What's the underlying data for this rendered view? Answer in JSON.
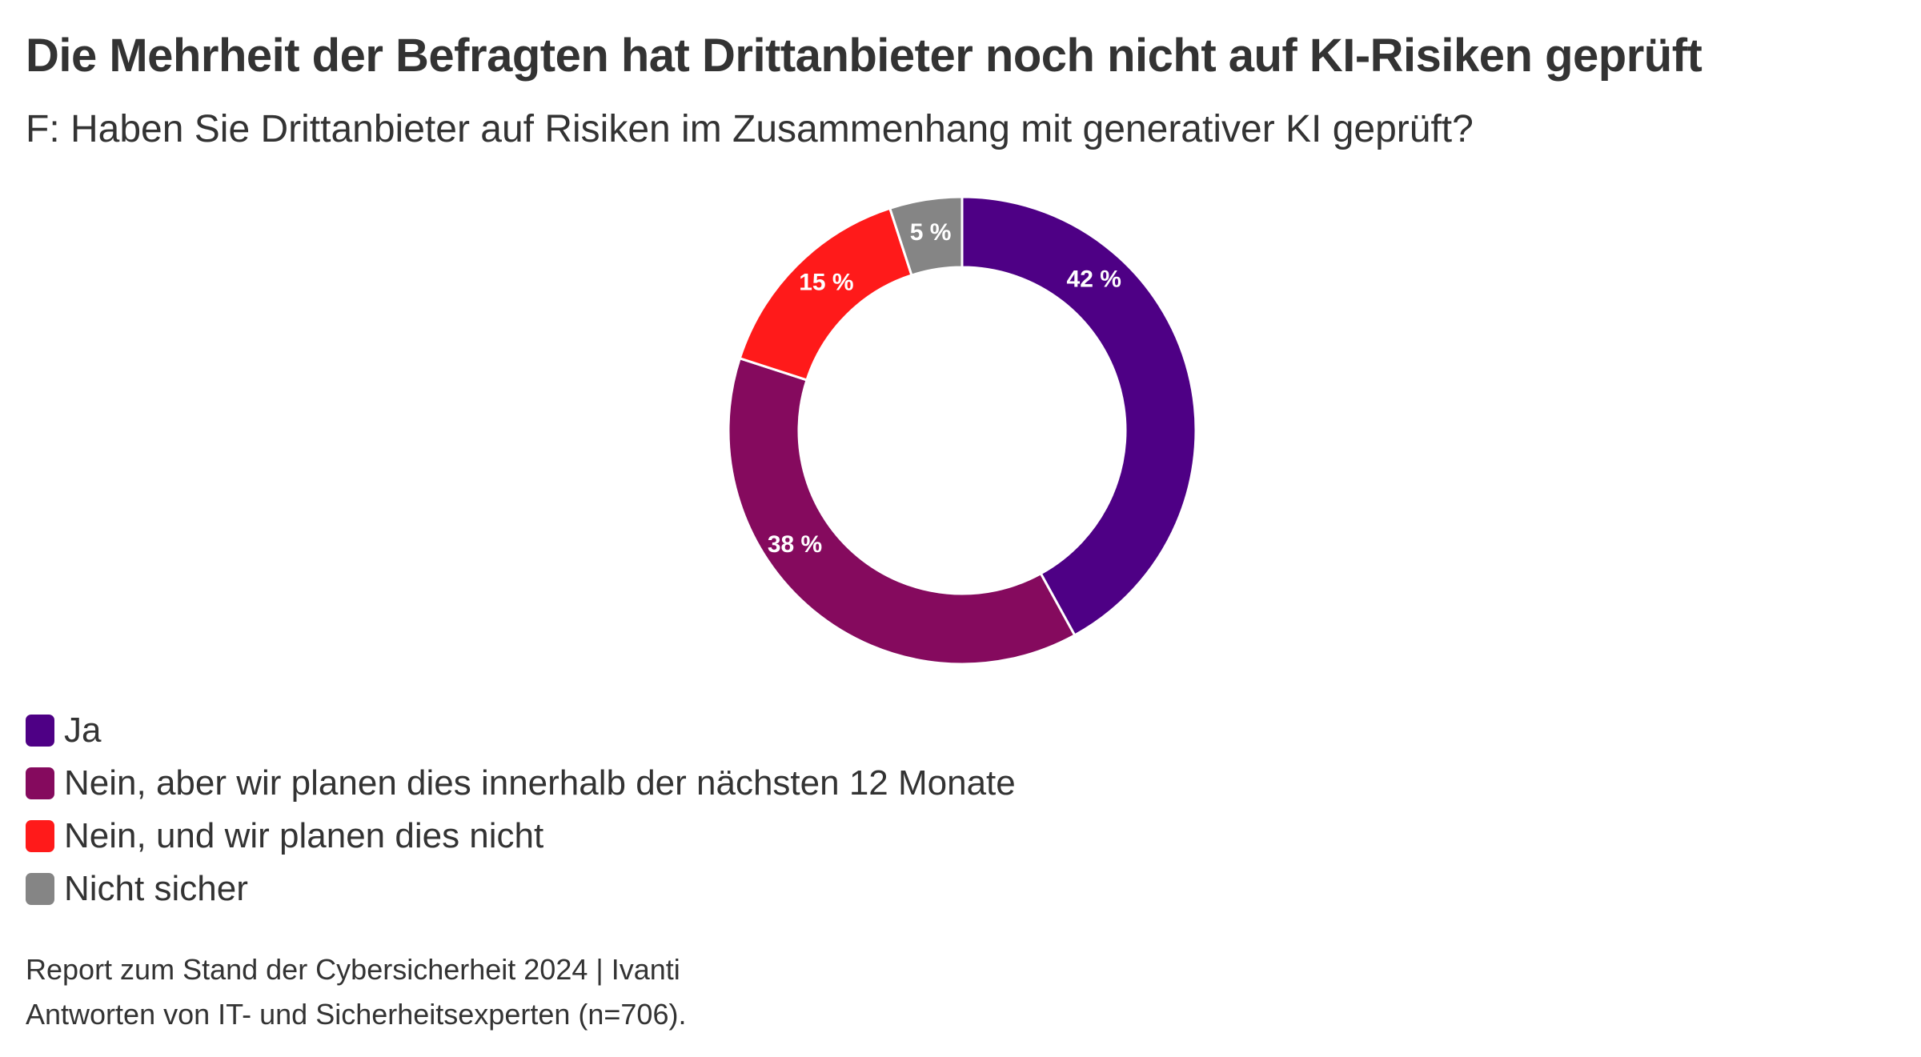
{
  "chart_data": {
    "type": "pie",
    "variant": "donut",
    "title": "Die Mehrheit der Befragten hat Drittanbieter noch nicht auf KI-Risiken geprüft",
    "subtitle": "F: Haben Sie Drittanbieter auf Risiken im Zusammenhang mit generativer KI geprüft?",
    "start": "top",
    "direction": "clockwise",
    "slices": [
      {
        "label": "Ja",
        "value": 42,
        "display": "42 %",
        "color": "#4e0085"
      },
      {
        "label": "Nein, aber wir planen dies innerhalb der nächsten 12 Monate",
        "value": 38,
        "display": "38 %",
        "color": "#850a5e"
      },
      {
        "label": "Nein, und wir planen dies nicht",
        "value": 15,
        "display": "15 %",
        "color": "#ff1a1a"
      },
      {
        "label": "Nicht sicher",
        "value": 5,
        "display": "5 %",
        "color": "#858585"
      }
    ],
    "unit": "%",
    "legend": "bottom-left"
  },
  "footer": {
    "source": "Report zum Stand der Cybersicherheit 2024 | Ivanti",
    "note": "Antworten von IT- und Sicherheitsexperten (n=706)."
  }
}
